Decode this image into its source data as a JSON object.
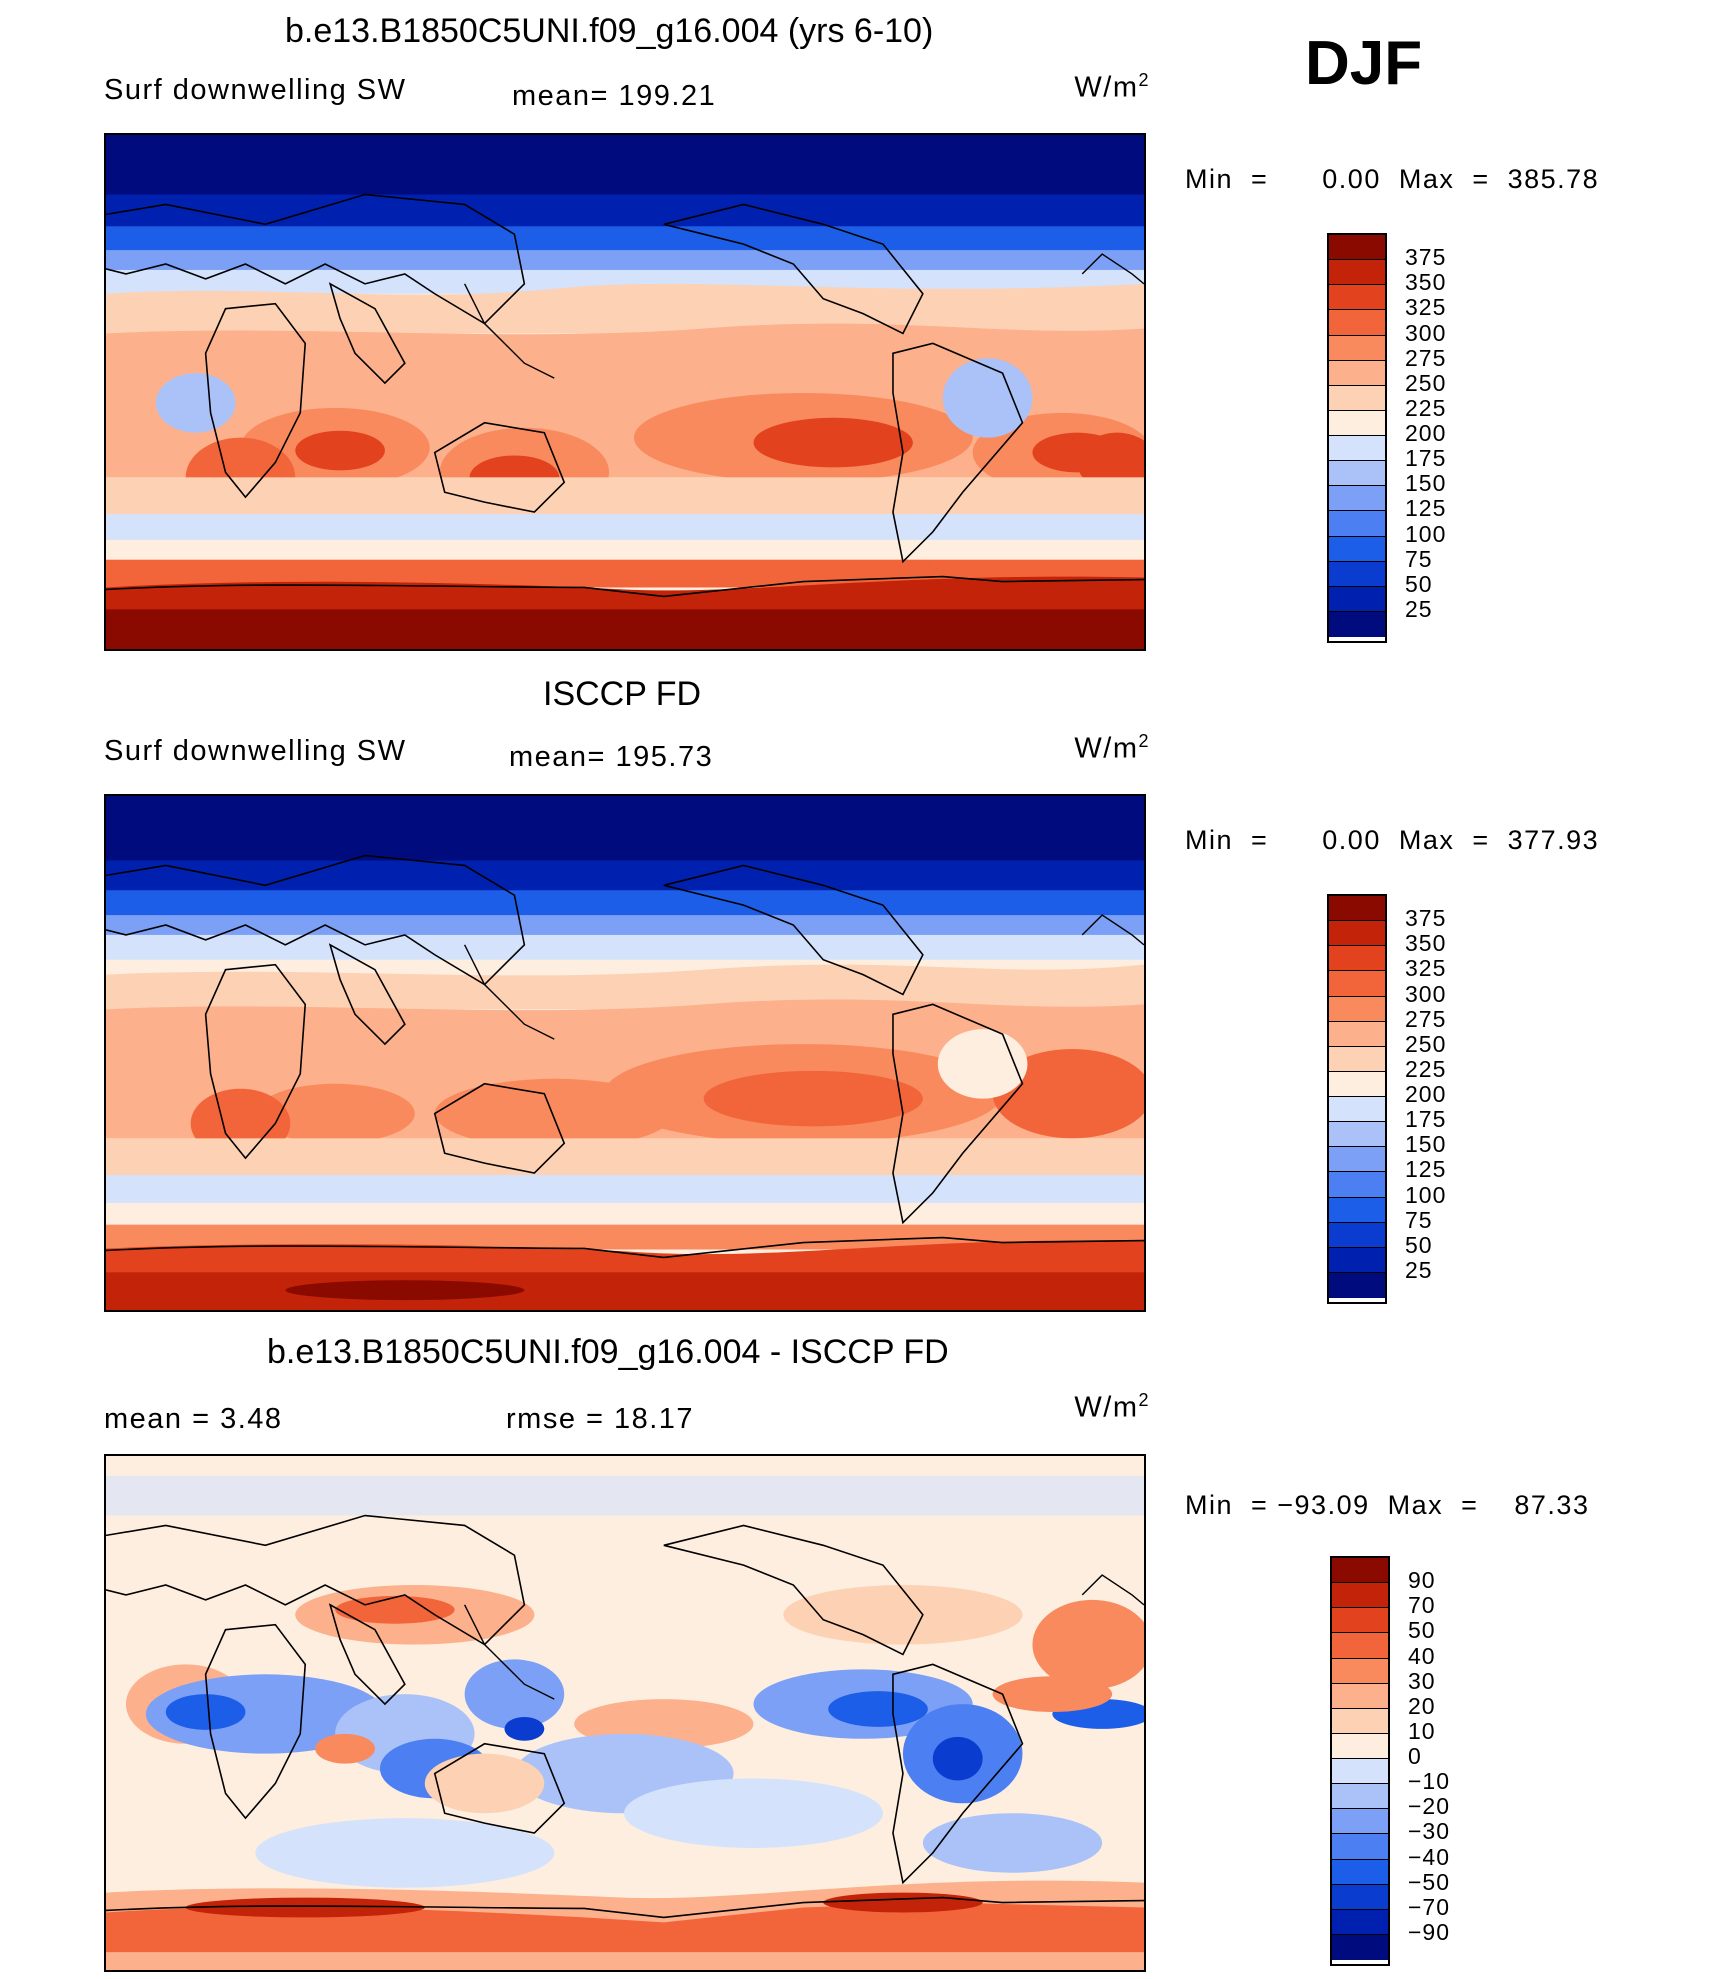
{
  "season": "DJF",
  "colors": {
    "abs_scale": [
      "#000c7e",
      "#0020b0",
      "#0a3ccf",
      "#1d5ee8",
      "#4b7ff2",
      "#7ca0f5",
      "#aac2f8",
      "#d4e2fb",
      "#fdeee0",
      "#fdd1b4",
      "#fcb08c",
      "#f98a5e",
      "#f2653a",
      "#e2431e",
      "#c32409",
      "#8b0a00"
    ],
    "diff_scale": [
      "#000c7e",
      "#0020b0",
      "#0a3ccf",
      "#1d5ee8",
      "#4b7ff2",
      "#7ca0f5",
      "#aac2f8",
      "#d4e2fb",
      "#fdeee0",
      "#fdd1b4",
      "#fcb08c",
      "#f98a5e",
      "#f2653a",
      "#e2431e",
      "#c32409",
      "#8b0a00"
    ]
  },
  "panels": [
    {
      "title": "b.e13.B1850C5UNI.f09_g16.004 (yrs 6-10)",
      "left_label": "Surf  downwelling  SW",
      "center_label": "mean=  199.21",
      "units_main": "W/m",
      "units_sup": "2",
      "minmax": "Min  =      0.00  Max  =  385.78",
      "colorbar_ticks": [
        "375",
        "350",
        "325",
        "300",
        "275",
        "250",
        "225",
        "200",
        "175",
        "150",
        "125",
        "100",
        "75",
        "50",
        "25"
      ]
    },
    {
      "title": "ISCCP FD",
      "left_label": "Surf  downwelling  SW",
      "center_label": "mean=  195.73",
      "units_main": "W/m",
      "units_sup": "2",
      "minmax": "Min  =      0.00  Max  =  377.93",
      "colorbar_ticks": [
        "375",
        "350",
        "325",
        "300",
        "275",
        "250",
        "225",
        "200",
        "175",
        "150",
        "125",
        "100",
        "75",
        "50",
        "25"
      ]
    },
    {
      "title": "b.e13.B1850C5UNI.f09_g16.004 - ISCCP FD",
      "left_label": "mean  =      3.48",
      "center_label": "rmse  =    18.17",
      "units_main": "W/m",
      "units_sup": "2",
      "minmax": "Min  = −93.09  Max  =    87.33",
      "colorbar_ticks": [
        "90",
        "70",
        "50",
        "40",
        "30",
        "20",
        "10",
        "0",
        "−10",
        "−20",
        "−30",
        "−40",
        "−50",
        "−70",
        "−90"
      ]
    }
  ]
}
